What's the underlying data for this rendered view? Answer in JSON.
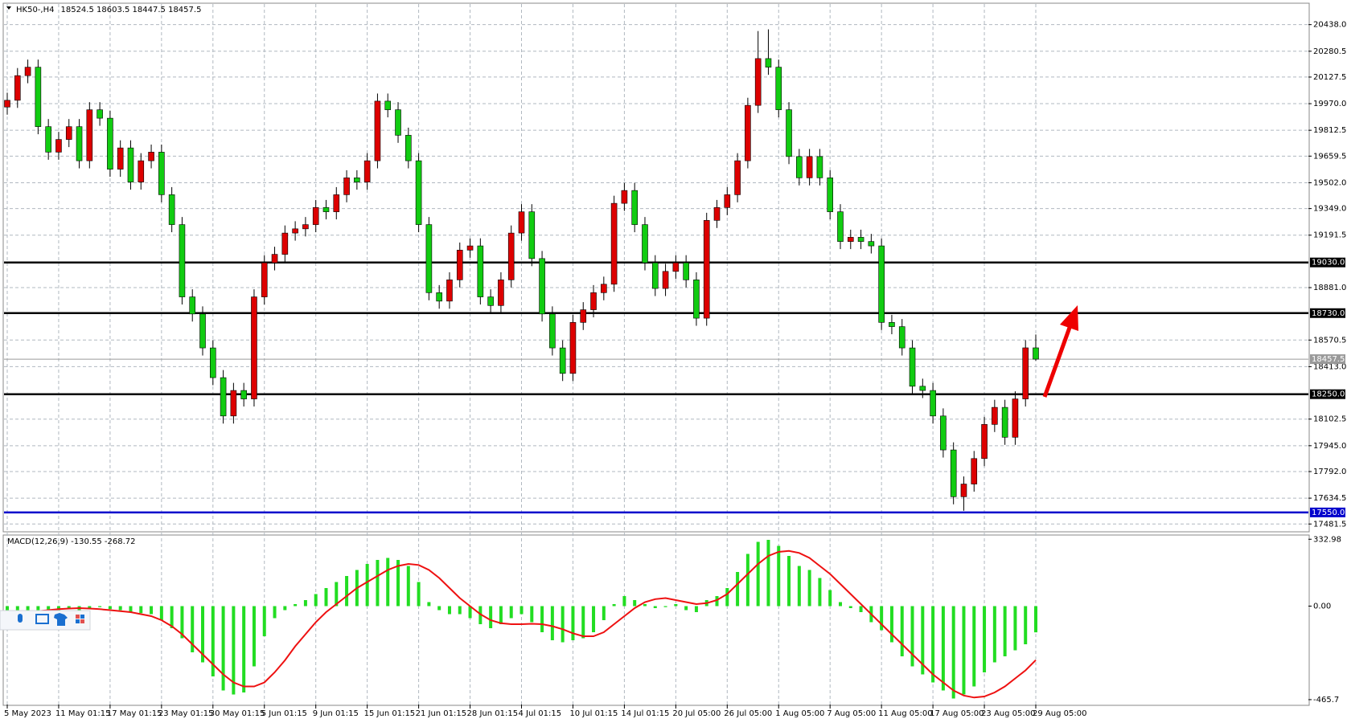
{
  "chart_data": [
    {
      "type": "candlestick",
      "title": "HK50-,H4",
      "header_values": "18524.5 18603.5 18447.5 18457.5",
      "up_color": "#dd0000",
      "down_color": "#11cc11",
      "ylim": [
        17440,
        20560
      ],
      "yticks": [
        {
          "value": 20438,
          "label": "20438.0"
        },
        {
          "value": 20280.5,
          "label": "20280.5"
        },
        {
          "value": 20127.5,
          "label": "20127.5"
        },
        {
          "value": 19970,
          "label": "19970.0"
        },
        {
          "value": 19812.5,
          "label": "19812.5"
        },
        {
          "value": 19659.5,
          "label": "19659.5"
        },
        {
          "value": 19502,
          "label": "19502.0"
        },
        {
          "value": 19349,
          "label": "19349.0"
        },
        {
          "value": 19191.5,
          "label": "19191.5"
        },
        {
          "value": 18881,
          "label": "18881.0"
        },
        {
          "value": 18570.5,
          "label": "18570.5"
        },
        {
          "value": 18413,
          "label": "18413.0"
        },
        {
          "value": 18102.5,
          "label": "18102.5"
        },
        {
          "value": 17945,
          "label": "17945.0"
        },
        {
          "value": 17792,
          "label": "17792.0"
        },
        {
          "value": 17634.5,
          "label": "17634.5"
        },
        {
          "value": 17481.5,
          "label": "17481.5"
        }
      ],
      "levels": [
        {
          "value": 19030,
          "label": "19030.0",
          "color": "#000000"
        },
        {
          "value": 18730,
          "label": "18730.0",
          "color": "#000000"
        },
        {
          "value": 18457.5,
          "label": "18457.5",
          "color": "#9a9a9a"
        },
        {
          "value": 18250,
          "label": "18250.0",
          "color": "#000000"
        },
        {
          "value": 17550,
          "label": "17550.0",
          "color": "#0000cc"
        }
      ],
      "x_labels": [
        "5 May 2023",
        "11 May 01:15",
        "17 May 01:15",
        "23 May 01:15",
        "30 May 01:15",
        "5 Jun 01:15",
        "9 Jun 01:15",
        "15 Jun 01:15",
        "21 Jun 01:15",
        "28 Jun 01:15",
        "4 Jul 01:15",
        "10 Jul 01:15",
        "14 Jul 01:15",
        "20 Jul 05:00",
        "26 Jul 05:00",
        "1 Aug 05:00",
        "7 Aug 05:00",
        "11 Aug 05:00",
        "17 Aug 05:00",
        "23 Aug 05:00",
        "29 Aug 05:00"
      ],
      "open": [
        19950,
        19990,
        20136,
        20186,
        19834,
        19683,
        19758,
        19834,
        19632,
        19934,
        19884,
        19582,
        19708,
        19506,
        19632,
        19683,
        19431,
        19254,
        18826,
        18725,
        18524,
        18348,
        18121,
        18272,
        18222,
        18826,
        19028,
        19078,
        19204,
        19229,
        19254,
        19355,
        19330,
        19431,
        19531,
        19506,
        19632,
        19985,
        19934,
        19783,
        19632,
        19254,
        18851,
        18801,
        18927,
        19103,
        19128,
        18826,
        18775,
        18927,
        19204,
        19330,
        19053,
        18725,
        18524,
        18373,
        18675,
        18750,
        18851,
        18901,
        19380,
        19456,
        19254,
        19028,
        18876,
        18977,
        19028,
        18927,
        18700,
        19279,
        19355,
        19431,
        19632,
        19960,
        20237,
        20186,
        19934,
        19657,
        19531,
        19657,
        19531,
        19330,
        19154,
        19179,
        19154,
        19128,
        18675,
        18650,
        18524,
        18297,
        18272,
        18121,
        17920,
        17643,
        17718,
        17869,
        18071,
        18172,
        17995,
        18222,
        18524.5
      ],
      "high": [
        20035,
        20181,
        20231,
        20231,
        19879,
        19803,
        19879,
        19879,
        19979,
        19979,
        19929,
        19753,
        19753,
        19677,
        19728,
        19728,
        19476,
        19299,
        18871,
        18770,
        18569,
        18393,
        18317,
        18317,
        18871,
        19073,
        19123,
        19249,
        19274,
        19299,
        19400,
        19400,
        19476,
        19576,
        19576,
        19677,
        20030,
        20030,
        19979,
        19828,
        19677,
        19299,
        18896,
        18972,
        19148,
        19173,
        19173,
        18871,
        18972,
        19249,
        19375,
        19375,
        19098,
        18770,
        18569,
        18720,
        18795,
        18896,
        18946,
        19425,
        19501,
        19501,
        19299,
        19073,
        19022,
        19073,
        19073,
        18972,
        19324,
        19400,
        19476,
        19677,
        20005,
        20400,
        20410,
        20231,
        19979,
        19702,
        19702,
        19702,
        19576,
        19375,
        19224,
        19224,
        19199,
        19173,
        18720,
        18695,
        18569,
        18342,
        18317,
        18166,
        17965,
        17763,
        17914,
        18116,
        18217,
        18217,
        18267,
        18569.5,
        18603.5
      ],
      "low": [
        19905,
        19945,
        20091,
        19789,
        19638,
        19638,
        19713,
        19587,
        19587,
        19839,
        19537,
        19537,
        19461,
        19461,
        19587,
        19386,
        19209,
        18781,
        18680,
        18479,
        18303,
        18076,
        18076,
        18177,
        18177,
        18781,
        18983,
        19033,
        19159,
        19184,
        19209,
        19285,
        19285,
        19386,
        19461,
        19461,
        19587,
        19889,
        19738,
        19587,
        19209,
        18806,
        18756,
        18756,
        18882,
        19058,
        18781,
        18730,
        18730,
        18882,
        19159,
        19008,
        18680,
        18479,
        18328,
        18328,
        18630,
        18705,
        18806,
        18856,
        19335,
        19209,
        18983,
        18831,
        18831,
        18932,
        18882,
        18655,
        18655,
        19234,
        19310,
        19386,
        19587,
        19915,
        20141,
        19889,
        19612,
        19486,
        19486,
        19486,
        19285,
        19109,
        19109,
        19109,
        19083,
        18630,
        18605,
        18479,
        18252,
        18227,
        18076,
        17875,
        17598,
        17560,
        17673,
        17824,
        18026,
        17950,
        17950,
        18177,
        18447.5
      ],
      "close": [
        19990,
        20136,
        20186,
        19834,
        19683,
        19758,
        19834,
        19632,
        19934,
        19884,
        19582,
        19708,
        19506,
        19632,
        19683,
        19431,
        19254,
        18826,
        18725,
        18524,
        18348,
        18121,
        18272,
        18222,
        18826,
        19028,
        19078,
        19204,
        19229,
        19254,
        19355,
        19330,
        19431,
        19531,
        19506,
        19632,
        19985,
        19934,
        19783,
        19632,
        19254,
        18851,
        18801,
        18927,
        19103,
        19128,
        18826,
        18775,
        18927,
        19204,
        19330,
        19053,
        18725,
        18524,
        18373,
        18675,
        18750,
        18851,
        18901,
        19380,
        19456,
        19254,
        19028,
        18876,
        18977,
        19028,
        18927,
        18700,
        19279,
        19355,
        19431,
        19632,
        19960,
        20237,
        20186,
        19934,
        19657,
        19531,
        19657,
        19531,
        19330,
        19154,
        19179,
        19154,
        19128,
        18675,
        18650,
        18524,
        18297,
        18272,
        18121,
        17920,
        17643,
        17718,
        17869,
        18071,
        18172,
        17995,
        18222,
        18524.5,
        18457.5
      ]
    },
    {
      "type": "macd",
      "title": "MACD(12,26,9) -130.55 -268.72",
      "ylim": [
        -490,
        350
      ],
      "yticks": [
        332.98,
        {
          "value": 0,
          "label": "0.00"
        },
        -465.7
      ],
      "series": [
        {
          "name": "histogram",
          "color": "#22dd22",
          "values": [
            -30,
            -25,
            -20,
            -30,
            -35,
            -20,
            -15,
            -25,
            -10,
            -5,
            -15,
            -20,
            -30,
            -35,
            -40,
            -70,
            -110,
            -160,
            -230,
            -280,
            -350,
            -420,
            -440,
            -430,
            -300,
            -150,
            -60,
            -20,
            10,
            30,
            60,
            90,
            120,
            150,
            180,
            210,
            230,
            240,
            230,
            200,
            120,
            20,
            -20,
            -40,
            -40,
            -60,
            -90,
            -110,
            -90,
            -60,
            -40,
            -80,
            -130,
            -170,
            -180,
            -170,
            -160,
            -130,
            -70,
            10,
            50,
            30,
            10,
            -10,
            -5,
            10,
            -20,
            -30,
            30,
            50,
            90,
            170,
            260,
            320,
            330,
            300,
            250,
            200,
            180,
            140,
            80,
            20,
            -10,
            -30,
            -80,
            -120,
            -180,
            -250,
            -300,
            -340,
            -380,
            -420,
            -460,
            -440,
            -400,
            -330,
            -280,
            -250,
            -220,
            -190,
            -130.55
          ]
        },
        {
          "name": "signal",
          "color": "#ee1111",
          "values": [
            -50,
            -40,
            -30,
            -25,
            -20,
            -15,
            -12,
            -10,
            -12,
            -15,
            -20,
            -25,
            -30,
            -40,
            -50,
            -70,
            -100,
            -140,
            -190,
            -240,
            -290,
            -340,
            -380,
            -400,
            -400,
            -380,
            -330,
            -270,
            -200,
            -140,
            -80,
            -30,
            10,
            50,
            90,
            120,
            150,
            180,
            200,
            210,
            205,
            180,
            140,
            90,
            40,
            0,
            -40,
            -70,
            -85,
            -90,
            -90,
            -88,
            -90,
            -100,
            -115,
            -135,
            -150,
            -150,
            -130,
            -90,
            -50,
            -10,
            20,
            35,
            40,
            30,
            20,
            10,
            15,
            30,
            60,
            110,
            160,
            210,
            250,
            270,
            275,
            265,
            240,
            200,
            160,
            110,
            60,
            10,
            -40,
            -90,
            -140,
            -190,
            -240,
            -290,
            -340,
            -380,
            -420,
            -445,
            -455,
            -450,
            -430,
            -400,
            -360,
            -320,
            -268.72
          ]
        }
      ]
    }
  ]
}
